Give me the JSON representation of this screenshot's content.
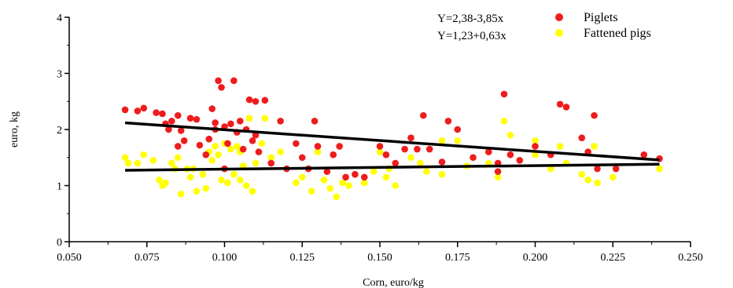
{
  "chart_data": {
    "type": "scatter",
    "title": "",
    "xlabel": "Corn, euro/kg",
    "ylabel": "euro, kg",
    "xlim": [
      0.05,
      0.25
    ],
    "ylim": [
      0,
      4
    ],
    "x_ticks": [
      "0.050",
      "0.075",
      "0.100",
      "0.125",
      "0.150",
      "0.175",
      "0.200",
      "0.225",
      "0.250"
    ],
    "y_ticks": [
      "0",
      "1",
      "2",
      "3",
      "4"
    ],
    "grid": false,
    "legend_position": "top-right",
    "series": [
      {
        "name": "Piglets",
        "color": "#ee1c1c",
        "points": [
          [
            0.068,
            2.35
          ],
          [
            0.072,
            2.33
          ],
          [
            0.074,
            2.38
          ],
          [
            0.078,
            2.3
          ],
          [
            0.08,
            2.28
          ],
          [
            0.081,
            2.1
          ],
          [
            0.082,
            2.0
          ],
          [
            0.083,
            2.15
          ],
          [
            0.085,
            2.25
          ],
          [
            0.086,
            1.98
          ],
          [
            0.087,
            1.8
          ],
          [
            0.089,
            2.2
          ],
          [
            0.091,
            2.18
          ],
          [
            0.092,
            1.72
          ],
          [
            0.094,
            1.55
          ],
          [
            0.095,
            1.83
          ],
          [
            0.096,
            2.37
          ],
          [
            0.097,
            2.12
          ],
          [
            0.098,
            2.87
          ],
          [
            0.099,
            2.75
          ],
          [
            0.1,
            2.05
          ],
          [
            0.101,
            1.75
          ],
          [
            0.102,
            2.1
          ],
          [
            0.103,
            2.87
          ],
          [
            0.104,
            1.95
          ],
          [
            0.105,
            2.15
          ],
          [
            0.106,
            1.65
          ],
          [
            0.107,
            2.0
          ],
          [
            0.108,
            2.53
          ],
          [
            0.109,
            1.8
          ],
          [
            0.11,
            2.5
          ],
          [
            0.111,
            1.6
          ],
          [
            0.113,
            2.52
          ],
          [
            0.115,
            1.4
          ],
          [
            0.118,
            2.15
          ],
          [
            0.123,
            1.75
          ],
          [
            0.125,
            1.5
          ],
          [
            0.127,
            1.3
          ],
          [
            0.129,
            2.15
          ],
          [
            0.13,
            1.7
          ],
          [
            0.133,
            1.25
          ],
          [
            0.135,
            1.55
          ],
          [
            0.137,
            1.7
          ],
          [
            0.139,
            1.15
          ],
          [
            0.142,
            1.2
          ],
          [
            0.145,
            1.15
          ],
          [
            0.15,
            1.7
          ],
          [
            0.152,
            1.55
          ],
          [
            0.155,
            1.4
          ],
          [
            0.16,
            1.85
          ],
          [
            0.162,
            1.65
          ],
          [
            0.164,
            2.25
          ],
          [
            0.166,
            1.65
          ],
          [
            0.17,
            1.42
          ],
          [
            0.172,
            2.15
          ],
          [
            0.175,
            2.0
          ],
          [
            0.18,
            1.5
          ],
          [
            0.185,
            1.6
          ],
          [
            0.188,
            1.4
          ],
          [
            0.19,
            2.63
          ],
          [
            0.192,
            1.55
          ],
          [
            0.195,
            1.45
          ],
          [
            0.2,
            1.7
          ],
          [
            0.205,
            1.55
          ],
          [
            0.208,
            2.45
          ],
          [
            0.21,
            2.4
          ],
          [
            0.215,
            1.85
          ],
          [
            0.217,
            1.6
          ],
          [
            0.219,
            2.25
          ],
          [
            0.22,
            1.3
          ],
          [
            0.226,
            1.3
          ],
          [
            0.235,
            1.55
          ],
          [
            0.24,
            1.48
          ],
          [
            0.1,
            1.3
          ],
          [
            0.097,
            2.0
          ],
          [
            0.085,
            1.7
          ],
          [
            0.11,
            1.9
          ],
          [
            0.12,
            1.3
          ],
          [
            0.158,
            1.65
          ],
          [
            0.188,
            1.25
          ]
        ]
      },
      {
        "name": "Fattened pigs",
        "color": "#ffff00",
        "points": [
          [
            0.068,
            1.5
          ],
          [
            0.069,
            1.4
          ],
          [
            0.072,
            1.4
          ],
          [
            0.074,
            1.55
          ],
          [
            0.077,
            1.45
          ],
          [
            0.079,
            1.1
          ],
          [
            0.08,
            1.0
          ],
          [
            0.081,
            1.05
          ],
          [
            0.083,
            1.4
          ],
          [
            0.084,
            1.3
          ],
          [
            0.085,
            1.5
          ],
          [
            0.086,
            0.85
          ],
          [
            0.088,
            1.3
          ],
          [
            0.089,
            1.15
          ],
          [
            0.09,
            1.3
          ],
          [
            0.091,
            0.9
          ],
          [
            0.093,
            1.2
          ],
          [
            0.094,
            0.95
          ],
          [
            0.095,
            1.6
          ],
          [
            0.096,
            1.45
          ],
          [
            0.097,
            1.7
          ],
          [
            0.098,
            1.55
          ],
          [
            0.099,
            1.1
          ],
          [
            0.1,
            1.3
          ],
          [
            0.101,
            1.05
          ],
          [
            0.102,
            1.65
          ],
          [
            0.103,
            1.2
          ],
          [
            0.104,
            1.7
          ],
          [
            0.105,
            1.1
          ],
          [
            0.106,
            1.35
          ],
          [
            0.107,
            1.0
          ],
          [
            0.108,
            2.2
          ],
          [
            0.109,
            0.9
          ],
          [
            0.11,
            1.4
          ],
          [
            0.112,
            1.75
          ],
          [
            0.113,
            2.2
          ],
          [
            0.115,
            1.5
          ],
          [
            0.118,
            1.6
          ],
          [
            0.123,
            1.05
          ],
          [
            0.125,
            1.15
          ],
          [
            0.128,
            0.9
          ],
          [
            0.13,
            1.6
          ],
          [
            0.132,
            1.1
          ],
          [
            0.134,
            0.95
          ],
          [
            0.136,
            0.8
          ],
          [
            0.138,
            1.05
          ],
          [
            0.14,
            1.0
          ],
          [
            0.145,
            1.05
          ],
          [
            0.148,
            1.25
          ],
          [
            0.15,
            1.6
          ],
          [
            0.152,
            1.15
          ],
          [
            0.155,
            1.0
          ],
          [
            0.16,
            1.5
          ],
          [
            0.163,
            1.4
          ],
          [
            0.165,
            1.25
          ],
          [
            0.17,
            1.2
          ],
          [
            0.175,
            1.8
          ],
          [
            0.178,
            1.35
          ],
          [
            0.18,
            1.5
          ],
          [
            0.185,
            1.4
          ],
          [
            0.188,
            1.15
          ],
          [
            0.19,
            2.15
          ],
          [
            0.192,
            1.9
          ],
          [
            0.195,
            1.45
          ],
          [
            0.2,
            1.55
          ],
          [
            0.205,
            1.3
          ],
          [
            0.208,
            1.7
          ],
          [
            0.21,
            1.4
          ],
          [
            0.215,
            1.2
          ],
          [
            0.217,
            1.1
          ],
          [
            0.219,
            1.7
          ],
          [
            0.22,
            1.05
          ],
          [
            0.225,
            1.15
          ],
          [
            0.24,
            1.3
          ],
          [
            0.1,
            1.75
          ],
          [
            0.105,
            1.6
          ],
          [
            0.153,
            1.3
          ],
          [
            0.17,
            1.8
          ],
          [
            0.2,
            1.8
          ]
        ]
      }
    ],
    "trend_lines": [
      {
        "equation": "Y=2,38-3,85x",
        "series": "Piglets",
        "x": [
          0.068,
          0.24
        ]
      },
      {
        "equation": "Y=1,23+0,63x",
        "series": "Fattened pigs",
        "x": [
          0.068,
          0.24
        ]
      }
    ]
  }
}
